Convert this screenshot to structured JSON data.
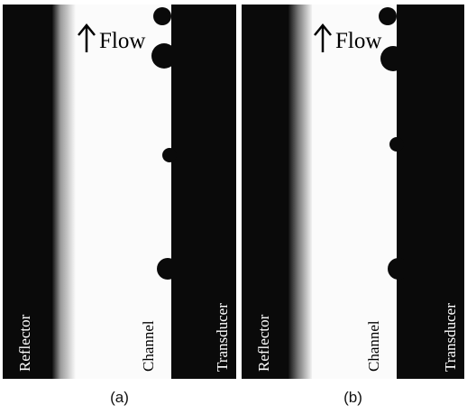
{
  "panels": [
    {
      "label": "(a)",
      "flow": "Flow",
      "reflector": "Reflector",
      "channel": "Channel",
      "transducer": "Transducer"
    },
    {
      "label": "(b)",
      "flow": "Flow",
      "reflector": "Reflector",
      "channel": "Channel",
      "transducer": "Transducer"
    }
  ]
}
